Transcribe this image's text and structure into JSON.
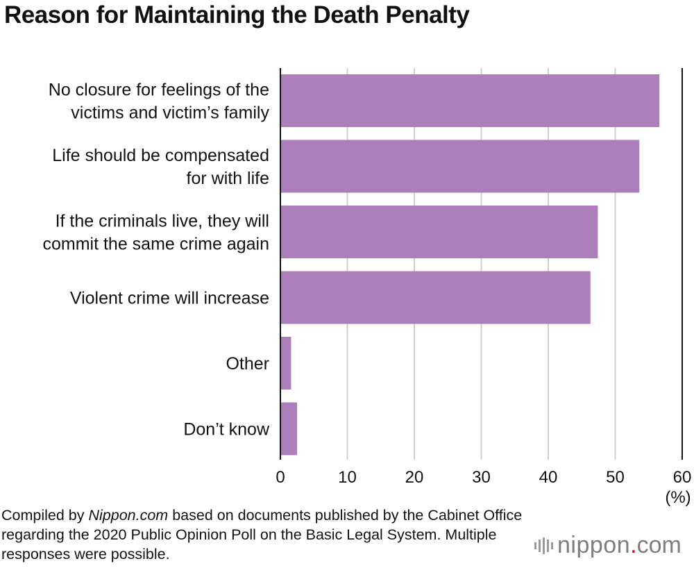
{
  "title": "Reason for Maintaining the Death Penalty",
  "chart_data": {
    "type": "bar",
    "orientation": "horizontal",
    "title": "Reason for Maintaining the Death Penalty",
    "categories": [
      [
        "No closure for feelings of the",
        "victims and victim’s family"
      ],
      [
        "Life should be compensated",
        "for with life"
      ],
      [
        "If the criminals live, they will",
        "commit the same crime again"
      ],
      [
        "Violent crime will increase"
      ],
      [
        "Other"
      ],
      [
        "Don’t know"
      ]
    ],
    "values": [
      56.6,
      53.6,
      47.4,
      46.3,
      1.6,
      2.5
    ],
    "xlim": [
      0,
      60
    ],
    "xticks": [
      0,
      10,
      20,
      30,
      40,
      50,
      60
    ],
    "xunit": "(%)",
    "grid": true,
    "bar_color": "#ad7fba"
  },
  "source": {
    "prefix": "Compiled by ",
    "site": "Nippon.com",
    "rest": " based on documents published by the Cabinet Office regarding the 2020 Public Opinion Poll on the Basic Legal System. Multiple responses were possible."
  },
  "logo": {
    "name": "nippon",
    "dot": ".",
    "suffix": "com"
  }
}
